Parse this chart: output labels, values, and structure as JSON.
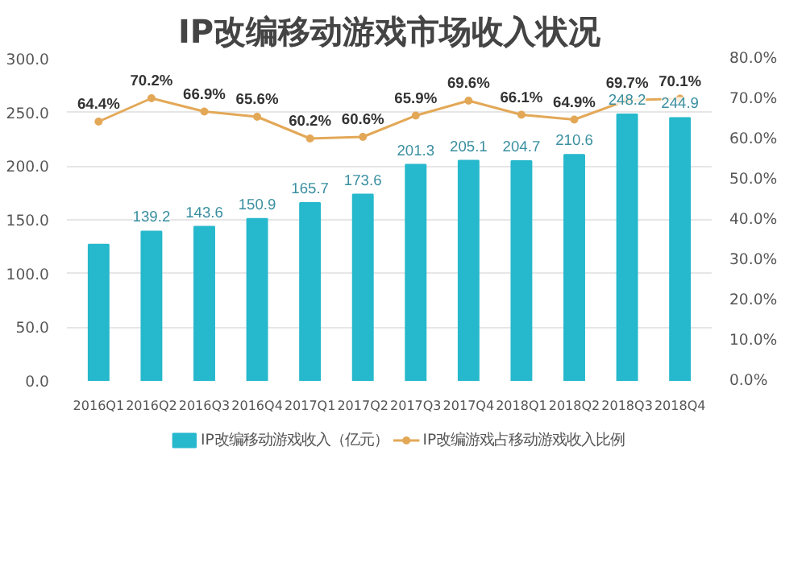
{
  "chart_data": {
    "type": "bar",
    "title": "IP改编移动游戏市场收入状况",
    "categories": [
      "2016Q1",
      "2016Q2",
      "2016Q3",
      "2016Q4",
      "2017Q1",
      "2017Q2",
      "2017Q3",
      "2017Q4",
      "2018Q1",
      "2018Q2",
      "2018Q3",
      "2018Q4"
    ],
    "series": [
      {
        "name": "IP改编移动游戏收入（亿元）",
        "color": "#26b8cc",
        "values": [
          127,
          139.2,
          143.6,
          150.9,
          165.7,
          173.6,
          201.3,
          205.1,
          204.7,
          210.6,
          248.2,
          244.9
        ],
        "value_labels": [
          null,
          "139.2",
          "143.6",
          "150.9",
          "165.7",
          "173.6",
          "201.3",
          "205.1",
          "204.7",
          "210.6",
          "248.2",
          "244.9"
        ]
      },
      {
        "name": "IP改编游戏占移动游戏收入比例",
        "color": "#e3a857",
        "type": "line",
        "axis": "y2",
        "values": [
          64.4,
          70.2,
          66.9,
          65.6,
          60.2,
          60.6,
          65.9,
          69.6,
          66.1,
          64.9,
          69.7,
          70.1
        ],
        "value_labels": [
          "64.4%",
          "70.2%",
          "66.9%",
          "65.6%",
          "60.2%",
          "60.6%",
          "65.9%",
          "69.6%",
          "66.1%",
          "64.9%",
          "69.7%",
          "70.1%"
        ]
      }
    ],
    "ylim": [
      0,
      300
    ],
    "yticks": [
      {
        "value": 0,
        "label": "0.0"
      },
      {
        "value": 50,
        "label": "50.0"
      },
      {
        "value": 100,
        "label": "100.0"
      },
      {
        "value": 150,
        "label": "150.0"
      },
      {
        "value": 200,
        "label": "200.0"
      },
      {
        "value": 250,
        "label": "250.0"
      },
      {
        "value": 300,
        "label": "300.0"
      }
    ],
    "y2lim": [
      0,
      80
    ],
    "y2ticks": [
      {
        "value": 0,
        "label": "0.0%"
      },
      {
        "value": 10,
        "label": "10.0%"
      },
      {
        "value": 20,
        "label": "20.0%"
      },
      {
        "value": 30,
        "label": "30.0%"
      },
      {
        "value": 40,
        "label": "40.0%"
      },
      {
        "value": 50,
        "label": "50.0%"
      },
      {
        "value": 60,
        "label": "60.0%"
      },
      {
        "value": 70,
        "label": "70.0%"
      },
      {
        "value": 80,
        "label": "80.0%"
      }
    ],
    "grid": "y",
    "legend": "bottom",
    "marker": "circle",
    "line_style": "solid"
  }
}
